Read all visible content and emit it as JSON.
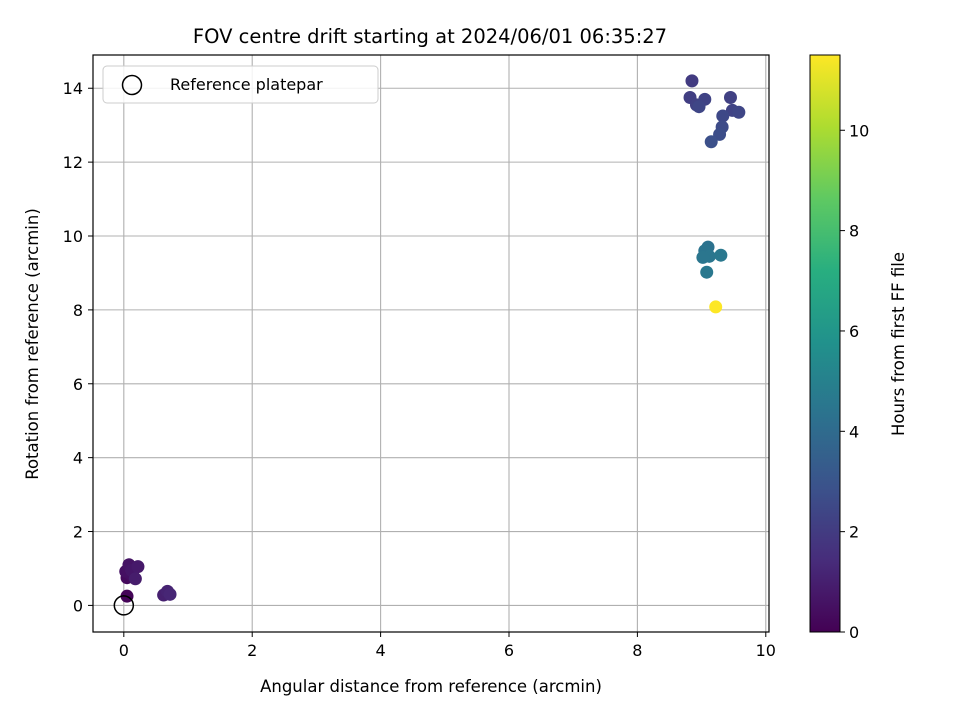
{
  "chart_data": {
    "type": "scatter",
    "title": "FOV centre drift starting at 2024/06/01 06:35:27",
    "xlabel": "Angular distance from reference (arcmin)",
    "ylabel": "Rotation from reference (arcmin)",
    "xlim": [
      -0.48,
      10.05
    ],
    "ylim": [
      -0.72,
      14.9
    ],
    "xticks": [
      0,
      2,
      4,
      6,
      8,
      10
    ],
    "yticks": [
      0,
      2,
      4,
      6,
      8,
      10,
      12,
      14
    ],
    "grid": true,
    "legend": {
      "placement": "upper-left",
      "label": "Reference platepar"
    },
    "reference_point": {
      "x": 0,
      "y": 0
    },
    "colormap": "viridis",
    "colorbar": {
      "label": "Hours from first FF file",
      "range": [
        0,
        11.5
      ],
      "ticks": [
        0,
        2,
        4,
        6,
        8,
        10
      ]
    },
    "points": [
      {
        "x": 0.05,
        "y": 0.25,
        "h": 0.1
      },
      {
        "x": 0.05,
        "y": 0.75,
        "h": 0.3
      },
      {
        "x": 0.1,
        "y": 0.85,
        "h": 0.4
      },
      {
        "x": 0.03,
        "y": 0.92,
        "h": 0.5
      },
      {
        "x": 0.08,
        "y": 1.1,
        "h": 0.6
      },
      {
        "x": 0.15,
        "y": 0.78,
        "h": 0.5
      },
      {
        "x": 0.12,
        "y": 0.95,
        "h": 0.7
      },
      {
        "x": 0.22,
        "y": 1.05,
        "h": 0.8
      },
      {
        "x": 0.18,
        "y": 0.72,
        "h": 0.9
      },
      {
        "x": 0.62,
        "y": 0.28,
        "h": 1.0
      },
      {
        "x": 0.68,
        "y": 0.38,
        "h": 1.1
      },
      {
        "x": 0.72,
        "y": 0.3,
        "h": 1.2
      },
      {
        "x": 8.85,
        "y": 14.2,
        "h": 2.0
      },
      {
        "x": 8.82,
        "y": 13.75,
        "h": 2.1
      },
      {
        "x": 8.92,
        "y": 13.55,
        "h": 2.2
      },
      {
        "x": 9.05,
        "y": 13.7,
        "h": 2.3
      },
      {
        "x": 8.96,
        "y": 13.5,
        "h": 2.4
      },
      {
        "x": 9.45,
        "y": 13.75,
        "h": 2.2
      },
      {
        "x": 9.48,
        "y": 13.4,
        "h": 2.3
      },
      {
        "x": 9.58,
        "y": 13.35,
        "h": 2.4
      },
      {
        "x": 9.33,
        "y": 13.25,
        "h": 2.5
      },
      {
        "x": 9.32,
        "y": 12.95,
        "h": 2.6
      },
      {
        "x": 9.28,
        "y": 12.75,
        "h": 2.7
      },
      {
        "x": 9.15,
        "y": 12.55,
        "h": 2.8
      },
      {
        "x": 9.1,
        "y": 9.7,
        "h": 4.3
      },
      {
        "x": 9.05,
        "y": 9.6,
        "h": 4.4
      },
      {
        "x": 9.12,
        "y": 9.45,
        "h": 4.5
      },
      {
        "x": 9.02,
        "y": 9.42,
        "h": 4.5
      },
      {
        "x": 9.3,
        "y": 9.48,
        "h": 4.6
      },
      {
        "x": 9.08,
        "y": 9.02,
        "h": 4.6
      },
      {
        "x": 9.22,
        "y": 8.08,
        "h": 11.5
      }
    ]
  }
}
